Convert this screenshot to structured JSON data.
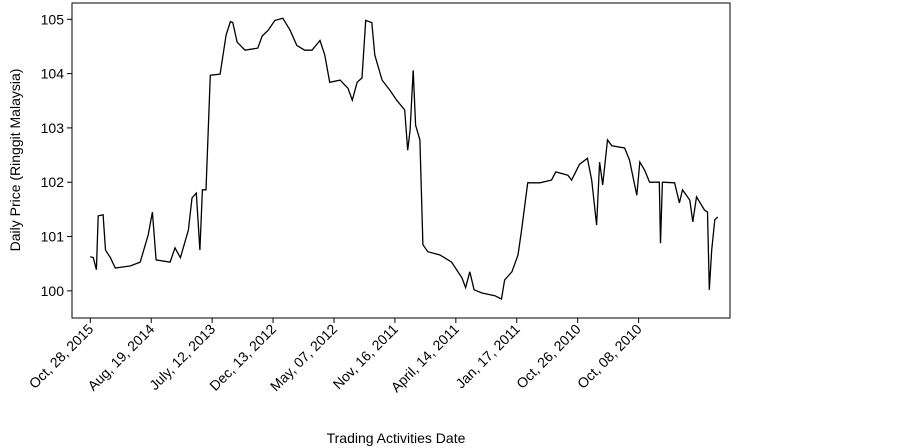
{
  "chart_data": {
    "type": "line",
    "xlabel": "Trading Activities Date",
    "ylabel": "Daily Price (Ringgit Malaysia)",
    "xlim": [
      -30,
      1050
    ],
    "xticks": [
      {
        "value": 0,
        "label": "Oct, 28, 2015"
      },
      {
        "value": 100,
        "label": "Aug, 19, 2014"
      },
      {
        "value": 200,
        "label": "July, 12, 2013"
      },
      {
        "value": 300,
        "label": "Dec, 13, 2012"
      },
      {
        "value": 400,
        "label": "May, 07, 2012"
      },
      {
        "value": 500,
        "label": "Nov, 16, 2011"
      },
      {
        "value": 600,
        "label": "April, 14, 2011"
      },
      {
        "value": 700,
        "label": "Jan, 17, 2011"
      },
      {
        "value": 800,
        "label": "Oct, 26, 2010"
      },
      {
        "value": 900,
        "label": "Oct, 08, 2010"
      }
    ],
    "ylim": [
      99.5,
      105.3
    ],
    "yticks": [
      100,
      101,
      102,
      103,
      104,
      105
    ],
    "grid": false,
    "series": [
      {
        "color": "#000000",
        "x": [
          0,
          5,
          10,
          13,
          21,
          25,
          33,
          41,
          66,
          82,
          95,
          102,
          108,
          131,
          139,
          148,
          161,
          167,
          174,
          180,
          184,
          190,
          197,
          213,
          223,
          230,
          234,
          241,
          254,
          275,
          282,
          292,
          303,
          316,
          328,
          339,
          352,
          364,
          377,
          385,
          393,
          410,
          423,
          430,
          438,
          446,
          452,
          462,
          467,
          479,
          492,
          503,
          516,
          521,
          525,
          530,
          534,
          541,
          546,
          554,
          574,
          593,
          610,
          616,
          623,
          630,
          643,
          664,
          675,
          680,
          692,
          702,
          708,
          718,
          738,
          757,
          764,
          784,
          790,
          803,
          816,
          823,
          831,
          836,
          841,
          849,
          856,
          877,
          885,
          897,
          902,
          910,
          918,
          934,
          936,
          939,
          959,
          967,
          972,
          984,
          989,
          995,
          1008,
          1013,
          1016,
          1020,
          1025,
          1030
        ],
        "values": [
          100.63,
          100.61,
          100.39,
          101.38,
          101.4,
          100.75,
          100.61,
          100.42,
          100.46,
          100.53,
          101.03,
          101.45,
          100.57,
          100.53,
          100.79,
          100.61,
          101.12,
          101.71,
          101.8,
          100.75,
          101.86,
          101.86,
          103.97,
          103.99,
          104.71,
          104.96,
          104.94,
          104.58,
          104.43,
          104.47,
          104.69,
          104.8,
          104.98,
          105.02,
          104.8,
          104.52,
          104.43,
          104.43,
          104.61,
          104.34,
          103.84,
          103.88,
          103.73,
          103.51,
          103.84,
          103.92,
          104.98,
          104.94,
          104.34,
          103.88,
          103.69,
          103.51,
          103.33,
          102.59,
          102.96,
          104.06,
          103.05,
          102.78,
          100.85,
          100.72,
          100.66,
          100.53,
          100.24,
          100.06,
          100.35,
          100.02,
          99.96,
          99.91,
          99.85,
          100.2,
          100.35,
          100.66,
          101.12,
          101.99,
          101.99,
          102.04,
          102.19,
          102.13,
          102.04,
          102.33,
          102.44,
          102.04,
          101.21,
          102.37,
          101.95,
          102.78,
          102.67,
          102.63,
          102.41,
          101.76,
          102.37,
          102.22,
          102.0,
          102.0,
          100.88,
          102.0,
          101.99,
          101.62,
          101.86,
          101.67,
          101.27,
          101.73,
          101.49,
          101.45,
          100.02,
          100.75,
          101.31,
          101.36
        ]
      }
    ]
  }
}
